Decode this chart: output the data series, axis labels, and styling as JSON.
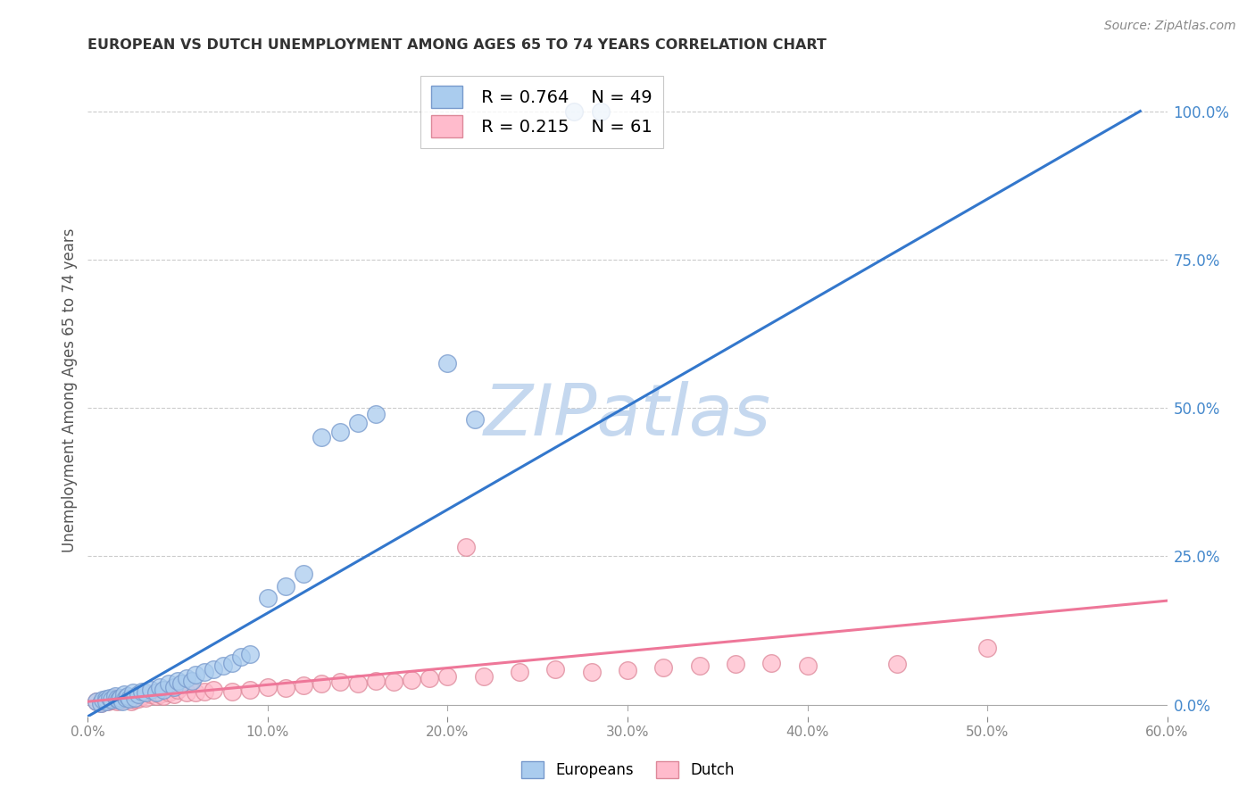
{
  "title": "EUROPEAN VS DUTCH UNEMPLOYMENT AMONG AGES 65 TO 74 YEARS CORRELATION CHART",
  "source": "Source: ZipAtlas.com",
  "ylabel": "Unemployment Among Ages 65 to 74 years",
  "xlim": [
    0.0,
    0.6
  ],
  "ylim": [
    -0.02,
    1.08
  ],
  "background_color": "#ffffff",
  "grid_color": "#cccccc",
  "watermark": "ZIPatlas",
  "watermark_color": "#c5d8ef",
  "title_color": "#333333",
  "axis_label_color": "#555555",
  "right_tick_color": "#4488cc",
  "blue_line_color": "#3377cc",
  "pink_line_color": "#ee7799",
  "blue_scatter_color": "#aaccee",
  "pink_scatter_color": "#ffbbcc",
  "blue_scatter_edge": "#7799cc",
  "pink_scatter_edge": "#dd8899",
  "legend_blue_R": "0.764",
  "legend_blue_N": "49",
  "legend_pink_R": "0.215",
  "legend_pink_N": "61",
  "blue_line_x0": 0.0,
  "blue_line_y0": -0.02,
  "blue_line_x1": 0.585,
  "blue_line_y1": 1.0,
  "pink_line_x0": 0.0,
  "pink_line_y0": 0.005,
  "pink_line_x1": 0.6,
  "pink_line_y1": 0.175,
  "blue_x": [
    0.005,
    0.007,
    0.008,
    0.01,
    0.01,
    0.012,
    0.013,
    0.015,
    0.016,
    0.017,
    0.018,
    0.019,
    0.02,
    0.021,
    0.022,
    0.023,
    0.025,
    0.026,
    0.028,
    0.03,
    0.032,
    0.035,
    0.038,
    0.04,
    0.042,
    0.045,
    0.048,
    0.05,
    0.052,
    0.055,
    0.058,
    0.06,
    0.065,
    0.07,
    0.075,
    0.08,
    0.085,
    0.09,
    0.1,
    0.11,
    0.12,
    0.13,
    0.14,
    0.15,
    0.16,
    0.2,
    0.215,
    0.27,
    0.285
  ],
  "blue_y": [
    0.005,
    0.003,
    0.008,
    0.01,
    0.005,
    0.012,
    0.008,
    0.015,
    0.01,
    0.008,
    0.012,
    0.006,
    0.018,
    0.012,
    0.015,
    0.01,
    0.02,
    0.012,
    0.018,
    0.022,
    0.02,
    0.025,
    0.02,
    0.03,
    0.025,
    0.035,
    0.03,
    0.04,
    0.035,
    0.045,
    0.04,
    0.05,
    0.055,
    0.06,
    0.065,
    0.07,
    0.08,
    0.085,
    0.18,
    0.2,
    0.22,
    0.45,
    0.46,
    0.475,
    0.49,
    0.575,
    0.48,
    1.0,
    1.0
  ],
  "pink_x": [
    0.005,
    0.007,
    0.008,
    0.01,
    0.011,
    0.012,
    0.013,
    0.014,
    0.015,
    0.016,
    0.017,
    0.018,
    0.019,
    0.02,
    0.021,
    0.022,
    0.023,
    0.024,
    0.025,
    0.026,
    0.027,
    0.028,
    0.03,
    0.032,
    0.035,
    0.038,
    0.04,
    0.042,
    0.045,
    0.048,
    0.05,
    0.055,
    0.06,
    0.065,
    0.07,
    0.08,
    0.09,
    0.1,
    0.11,
    0.12,
    0.13,
    0.14,
    0.15,
    0.16,
    0.17,
    0.18,
    0.19,
    0.2,
    0.21,
    0.22,
    0.24,
    0.26,
    0.28,
    0.3,
    0.32,
    0.34,
    0.36,
    0.38,
    0.4,
    0.45,
    0.5
  ],
  "pink_y": [
    0.005,
    0.003,
    0.006,
    0.008,
    0.005,
    0.01,
    0.007,
    0.012,
    0.008,
    0.005,
    0.01,
    0.007,
    0.008,
    0.012,
    0.01,
    0.008,
    0.012,
    0.006,
    0.01,
    0.008,
    0.012,
    0.01,
    0.015,
    0.012,
    0.018,
    0.015,
    0.018,
    0.015,
    0.02,
    0.018,
    0.025,
    0.02,
    0.02,
    0.022,
    0.025,
    0.022,
    0.025,
    0.03,
    0.028,
    0.032,
    0.035,
    0.038,
    0.035,
    0.04,
    0.038,
    0.042,
    0.045,
    0.048,
    0.265,
    0.048,
    0.055,
    0.06,
    0.055,
    0.058,
    0.062,
    0.065,
    0.068,
    0.07,
    0.065,
    0.068,
    0.095
  ]
}
